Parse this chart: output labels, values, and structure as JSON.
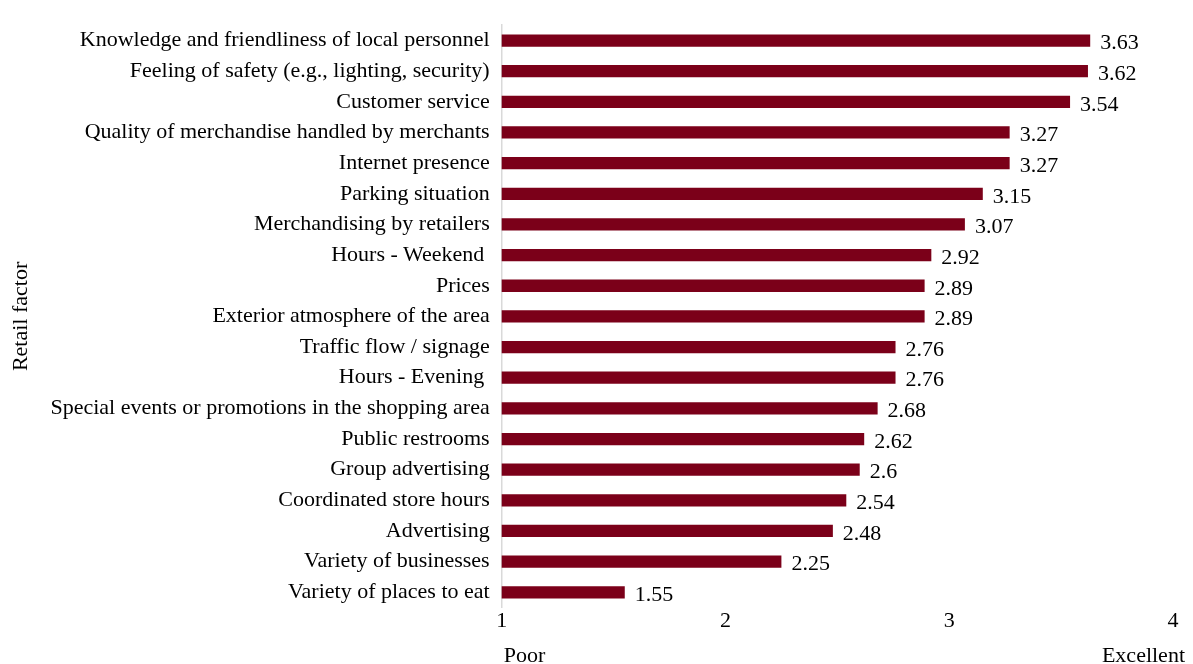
{
  "chart_data": {
    "type": "bar",
    "orientation": "horizontal",
    "ylabel": "Retail factor",
    "categories": [
      "Knowledge and friendliness of local personnel",
      "Feeling of safety (e.g., lighting, security)",
      "Customer service",
      "Quality of merchandise handled by merchants",
      "Internet presence",
      "Parking situation",
      "Merchandising by retailers",
      "Hours - Weekend ",
      "Prices",
      "Exterior atmosphere of the area",
      "Traffic flow / signage",
      "Hours - Evening ",
      "Special events or promotions in the shopping area",
      "Public restrooms",
      "Group advertising",
      "Coordinated store hours",
      "Advertising",
      "Variety of businesses",
      "Variety of places to eat"
    ],
    "values": [
      3.63,
      3.62,
      3.54,
      3.27,
      3.27,
      3.15,
      3.07,
      2.92,
      2.89,
      2.89,
      2.76,
      2.76,
      2.68,
      2.62,
      2.6,
      2.54,
      2.48,
      2.25,
      1.55
    ],
    "color": "#7b0019",
    "xlim": [
      1,
      4
    ],
    "xticks": [
      1,
      2,
      3,
      4
    ],
    "data_labels": true,
    "grid": false,
    "legend": false,
    "annotations": [
      "Poor",
      "Excellent"
    ]
  }
}
